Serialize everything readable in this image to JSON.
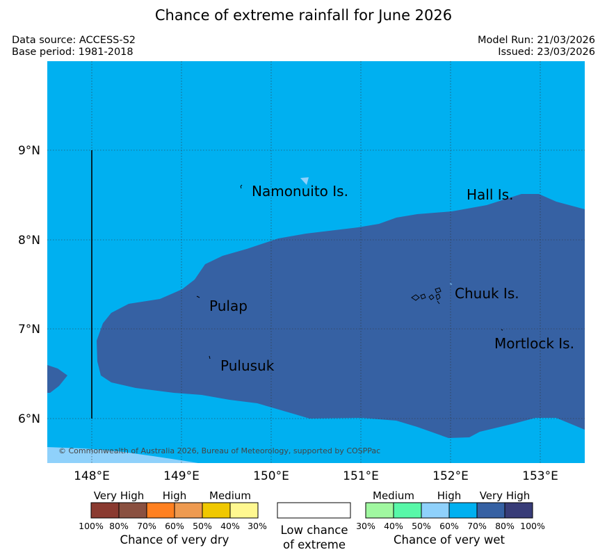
{
  "title": "Chance of extreme rainfall for June 2026",
  "meta": {
    "data_source": "Data source: ACCESS-S2",
    "base_period": "Base period: 1981-2018",
    "model_run": "Model Run: 21/03/2026",
    "issued": "Issued: 23/03/2026"
  },
  "map": {
    "copyright": "© Commonwealth of Australia 2026, Bureau of Meteorology, supported by COSPPac",
    "lat_labels": [
      "9°N",
      "8°N",
      "7°N",
      "6°N"
    ],
    "lon_labels": [
      "148°E",
      "149°E",
      "150°E",
      "151°E",
      "152°E",
      "153°E"
    ],
    "places": {
      "namonuito": "Namonuito Is.",
      "hall": "Hall Is.",
      "pulap": "Pulap",
      "chuuk": "Chuuk Is.",
      "mortlock": "Mortlock Is.",
      "pulusuk": "Pulusuk"
    },
    "colors": {
      "wet_70_80": "#00b0f0",
      "wet_80_100": "#3661a3",
      "wet_60_70": "#8fd1fb"
    }
  },
  "legend": {
    "dry": {
      "categories": [
        "Very High",
        "High",
        "Medium"
      ],
      "percentages": [
        "100%",
        "80%",
        "70%",
        "60%",
        "50%",
        "40%",
        "30%"
      ],
      "colors": [
        "#8a3a30",
        "#8a5040",
        "#ff8020",
        "#ee9a50",
        "#f0c800",
        "#fff890"
      ],
      "caption": "Chance of very dry"
    },
    "neutral": {
      "caption_line1": "Low chance",
      "caption_line2": "of extreme"
    },
    "wet": {
      "categories": [
        "Medium",
        "High",
        "Very High"
      ],
      "percentages": [
        "30%",
        "40%",
        "50%",
        "60%",
        "70%",
        "80%",
        "100%"
      ],
      "colors": [
        "#a0f8a0",
        "#58f8a8",
        "#8fd1fb",
        "#00b0f0",
        "#3661a3",
        "#383c78"
      ],
      "caption": "Chance of very wet"
    }
  }
}
